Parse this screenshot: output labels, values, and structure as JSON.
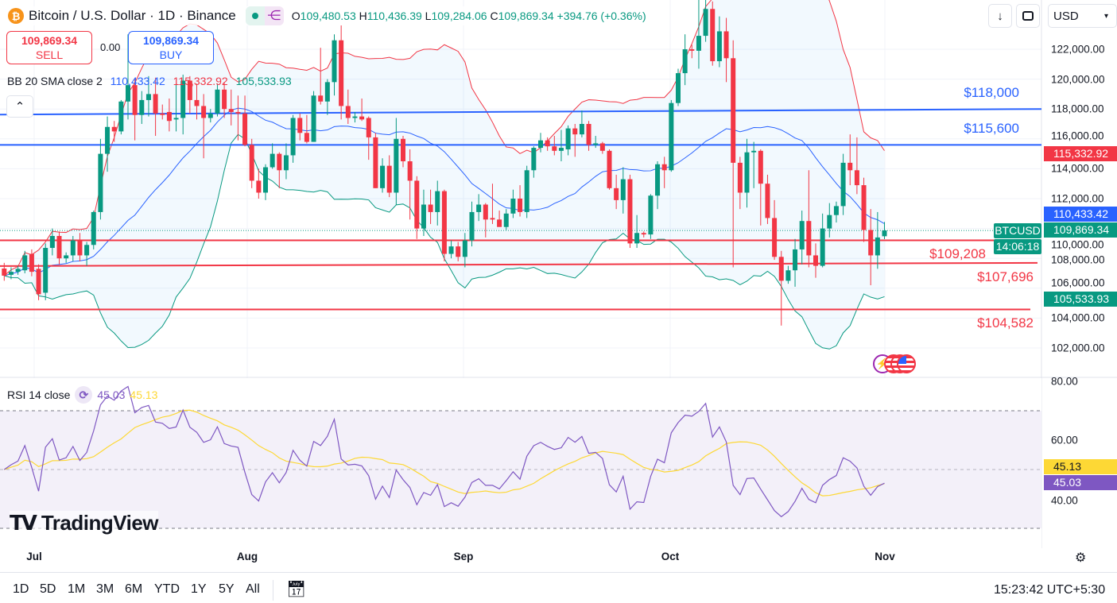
{
  "header": {
    "title": "Bitcoin / U.S. Dollar · 1D · Binance",
    "coin_glyph": "₿",
    "open_label": "O",
    "open": "109,480.53",
    "high_label": "H",
    "high": "110,436.39",
    "low_label": "L",
    "low": "109,284.06",
    "close_label": "C",
    "close": "109,869.34",
    "change": "+394.76 (+0.36%)"
  },
  "trade": {
    "sell_price": "109,869.34",
    "sell_label": "SELL",
    "spread": "0.00",
    "buy_price": "109,869.34",
    "buy_label": "BUY"
  },
  "bb_legend": {
    "name": "BB 20 SMA close 2",
    "basis": "110,433.42",
    "upper": "115,332.92",
    "lower": "105,533.93"
  },
  "toolbar": {
    "currency": "USD"
  },
  "price_axis": {
    "ticks": [
      "122,000.00",
      "120,000.00",
      "118,000.00",
      "116,000.00",
      "114,000.00",
      "112,000.00",
      "110,000.00",
      "108,000.00",
      "106,000.00",
      "104,000.00",
      "102,000.00"
    ],
    "tag_upper": "115,332.92",
    "tag_basis": "110,433.42",
    "tag_last": "109,869.34",
    "tag_countdown": "14:06:18",
    "tag_symbol": "BTCUSD",
    "tag_lower": "105,533.93"
  },
  "levels": [
    {
      "label": "$118,000",
      "value": 118000,
      "color": "#2962FF"
    },
    {
      "label": "$115,600",
      "value": 115600,
      "color": "#2962FF"
    },
    {
      "label": "$109,208",
      "value": 109208,
      "color": "#F23645"
    },
    {
      "label": "$107,696",
      "value": 107696,
      "color": "#F23645"
    },
    {
      "label": "$104,582",
      "value": 104582,
      "color": "#F23645"
    }
  ],
  "rsi": {
    "legend": "RSI 14 close",
    "value": "45.03",
    "ma_value": "45.13",
    "ticks": [
      "80.00",
      "60.00",
      "40.00"
    ],
    "upper_band": 70,
    "middle": 50,
    "lower_band": 30
  },
  "time_axis": [
    "Jul",
    "Aug",
    "Sep",
    "Oct",
    "Nov"
  ],
  "ranges": [
    "1D",
    "5D",
    "1M",
    "3M",
    "6M",
    "YTD",
    "1Y",
    "5Y",
    "All"
  ],
  "clock": "15:23:42 UTC+5:30",
  "logo": "TradingView",
  "colors": {
    "up": "#089981",
    "down": "#F23645",
    "bb_basis": "#2962FF",
    "bb_upper": "#F23645",
    "bb_lower": "#089981",
    "rsi": "#7E57C2",
    "rsi_ma": "#FDD835"
  },
  "chart_data": {
    "type": "candlestick",
    "symbol": "BTCUSD",
    "interval": "1D",
    "ylim": [
      101000,
      125300
    ],
    "rsi_ylim": [
      25,
      83
    ],
    "candles": [
      [
        "Jun 26",
        107320,
        107700,
        106500,
        106840
      ],
      [
        "Jun 27",
        106900,
        107400,
        106600,
        107100
      ],
      [
        "Jun 28",
        107100,
        107500,
        106900,
        107300
      ],
      [
        "Jun 29",
        107200,
        108500,
        107000,
        108200
      ],
      [
        "Jun 30",
        108300,
        108600,
        106800,
        107100
      ],
      [
        "Jul 1",
        107300,
        107600,
        105200,
        105600
      ],
      [
        "Jul 2",
        105700,
        109000,
        105200,
        108700
      ],
      [
        "Jul 3",
        108700,
        110000,
        108200,
        109500
      ],
      [
        "Jul 4",
        109500,
        109800,
        107600,
        108000
      ],
      [
        "Jul 5",
        108000,
        108400,
        107700,
        108200
      ],
      [
        "Jul 6",
        108200,
        109500,
        107800,
        109200
      ],
      [
        "Jul 7",
        109200,
        109700,
        107800,
        108200
      ],
      [
        "Jul 8",
        108200,
        109100,
        107500,
        108900
      ],
      [
        "Jul 9",
        108900,
        111200,
        108600,
        111100
      ],
      [
        "Jul 10",
        111100,
        116000,
        110600,
        115000
      ],
      [
        "Jul 11",
        115000,
        117500,
        113800,
        116800
      ],
      [
        "Jul 12",
        116800,
        117200,
        115800,
        116500
      ],
      [
        "Jul 13",
        116500,
        118600,
        116300,
        118500
      ],
      [
        "Jul 14",
        118500,
        123000,
        117300,
        119600
      ],
      [
        "Jul 15",
        119600,
        120000,
        115900,
        117600
      ],
      [
        "Jul 16",
        117600,
        119200,
        117000,
        118600
      ],
      [
        "Jul 17",
        118600,
        120200,
        117500,
        119000
      ],
      [
        "Jul 18",
        119000,
        120100,
        116200,
        117700
      ],
      [
        "Jul 19",
        117700,
        118300,
        117300,
        117600
      ],
      [
        "Jul 20",
        117800,
        118700,
        116500,
        117200
      ],
      [
        "Jul 21",
        117300,
        119700,
        116500,
        117400
      ],
      [
        "Jul 22",
        117400,
        120300,
        116300,
        119900
      ],
      [
        "Jul 23",
        119900,
        120200,
        117700,
        118600
      ],
      [
        "Jul 24",
        118600,
        119700,
        117300,
        118200
      ],
      [
        "Jul 25",
        118200,
        119000,
        114700,
        117400
      ],
      [
        "Jul 26",
        117400,
        118000,
        117100,
        117700
      ],
      [
        "Jul 27",
        117700,
        119700,
        117500,
        119300
      ],
      [
        "Jul 28",
        119300,
        119800,
        117400,
        118000
      ],
      [
        "Jul 29",
        118000,
        119300,
        116900,
        117800
      ],
      [
        "Jul 30",
        117800,
        118900,
        115900,
        117700
      ],
      [
        "Jul 31",
        117700,
        118900,
        115500,
        115600
      ],
      [
        "Aug 1",
        115600,
        116000,
        112700,
        113200
      ],
      [
        "Aug 2",
        113200,
        114000,
        112000,
        112400
      ],
      [
        "Aug 3",
        112400,
        114300,
        111900,
        114100
      ],
      [
        "Aug 4",
        114100,
        115700,
        114000,
        115000
      ],
      [
        "Aug 5",
        115000,
        115100,
        112700,
        113900
      ],
      [
        "Aug 6",
        113900,
        115700,
        113300,
        114900
      ],
      [
        "Aug 7",
        114900,
        117600,
        114400,
        117400
      ],
      [
        "Aug 8",
        117400,
        117700,
        115900,
        116400
      ],
      [
        "Aug 9",
        116400,
        117600,
        115700,
        115800
      ],
      [
        "Aug 10",
        115800,
        119200,
        115800,
        118900
      ],
      [
        "Aug 11",
        118900,
        122100,
        118300,
        118500
      ],
      [
        "Aug 12",
        118500,
        120000,
        117600,
        119800
      ],
      [
        "Aug 13",
        119800,
        123000,
        118900,
        122600
      ],
      [
        "Aug 14",
        122600,
        123600,
        117300,
        118200
      ],
      [
        "Aug 15",
        118200,
        119300,
        117000,
        117400
      ],
      [
        "Aug 16",
        117400,
        117800,
        117100,
        117500
      ],
      [
        "Aug 17",
        117500,
        118700,
        117200,
        117300
      ],
      [
        "Aug 18",
        117400,
        117500,
        114600,
        116100
      ],
      [
        "Aug 19",
        116100,
        116400,
        112700,
        112700
      ],
      [
        "Aug 20",
        112700,
        114700,
        112400,
        114200
      ],
      [
        "Aug 21",
        114200,
        114900,
        112100,
        112400
      ],
      [
        "Aug 22",
        112400,
        117400,
        111600,
        116000
      ],
      [
        "Aug 23",
        116000,
        116200,
        114100,
        114500
      ],
      [
        "Aug 24",
        114500,
        115300,
        110600,
        113200
      ],
      [
        "Aug 25",
        113200,
        113500,
        109300,
        110000
      ],
      [
        "Aug 26",
        110000,
        112600,
        109500,
        111600
      ],
      [
        "Aug 27",
        111600,
        112600,
        110300,
        111100
      ],
      [
        "Aug 28",
        111100,
        113200,
        110200,
        112500
      ],
      [
        "Aug 29",
        112500,
        112600,
        107800,
        108300
      ],
      [
        "Aug 30",
        108300,
        109200,
        108000,
        108800
      ],
      [
        "Aug 31",
        108800,
        109100,
        107800,
        108100
      ],
      [
        "Sep 1",
        108100,
        109700,
        107400,
        109200
      ],
      [
        "Sep 2",
        109200,
        111800,
        108800,
        111100
      ],
      [
        "Sep 3",
        111100,
        112300,
        110500,
        111600
      ],
      [
        "Sep 4",
        111600,
        111700,
        109400,
        110600
      ],
      [
        "Sep 5",
        110700,
        113000,
        110300,
        110600
      ],
      [
        "Sep 6",
        110600,
        111200,
        110300,
        110100
      ],
      [
        "Sep 7",
        110100,
        111300,
        109900,
        111000
      ],
      [
        "Sep 8",
        111000,
        112600,
        110700,
        112000
      ],
      [
        "Sep 9",
        112000,
        112900,
        110800,
        111100
      ],
      [
        "Sep 10",
        111100,
        114200,
        110700,
        113900
      ],
      [
        "Sep 11",
        113900,
        115500,
        113400,
        115400
      ],
      [
        "Sep 12",
        115400,
        116400,
        115100,
        115900
      ],
      [
        "Sep 13",
        115900,
        116100,
        115200,
        115500
      ],
      [
        "Sep 14",
        115500,
        116200,
        114900,
        115200
      ],
      [
        "Sep 15",
        115200,
        116600,
        114500,
        115400
      ],
      [
        "Sep 16",
        115300,
        116900,
        114900,
        116700
      ],
      [
        "Sep 17",
        116700,
        117000,
        114800,
        116300
      ],
      [
        "Sep 18",
        116300,
        117900,
        116100,
        117000
      ],
      [
        "Sep 19",
        117000,
        117200,
        115200,
        115600
      ],
      [
        "Sep 20",
        115600,
        116200,
        115400,
        115700
      ],
      [
        "Sep 21",
        115700,
        115800,
        115000,
        115200
      ],
      [
        "Sep 22",
        115200,
        115300,
        112600,
        112700
      ],
      [
        "Sep 23",
        112700,
        113600,
        111300,
        111900
      ],
      [
        "Sep 24",
        111900,
        114100,
        111000,
        113300
      ],
      [
        "Sep 25",
        113300,
        113600,
        108700,
        109000
      ],
      [
        "Sep 26",
        109000,
        110900,
        108700,
        109700
      ],
      [
        "Sep 27",
        109700,
        109800,
        109400,
        109600
      ],
      [
        "Sep 28",
        109600,
        112300,
        109300,
        112200
      ],
      [
        "Sep 29",
        112200,
        114500,
        111300,
        114300
      ],
      [
        "Sep 30",
        114300,
        114800,
        112700,
        113900
      ],
      [
        "Oct 1",
        113900,
        118600,
        113800,
        118400
      ],
      [
        "Oct 2",
        118400,
        120700,
        118200,
        120400
      ],
      [
        "Oct 3",
        120400,
        123000,
        119600,
        122000
      ],
      [
        "Oct 4",
        122000,
        122300,
        121400,
        121900
      ],
      [
        "Oct 5",
        121900,
        125500,
        120700,
        122900
      ],
      [
        "Oct 6",
        122900,
        126200,
        122500,
        124700
      ],
      [
        "Oct 7",
        124700,
        125200,
        120900,
        121200
      ],
      [
        "Oct 8",
        121200,
        124200,
        120800,
        123200
      ],
      [
        "Oct 9",
        123200,
        124100,
        119800,
        121400
      ],
      [
        "Oct 10",
        121400,
        122600,
        107400,
        114400
      ],
      [
        "Oct 11",
        114400,
        114800,
        111300,
        112400
      ],
      [
        "Oct 12",
        112400,
        116000,
        111400,
        115100
      ],
      [
        "Oct 13",
        115100,
        115800,
        112700,
        115200
      ],
      [
        "Oct 14",
        115200,
        115300,
        110200,
        113000
      ],
      [
        "Oct 15",
        113000,
        113600,
        110300,
        110700
      ],
      [
        "Oct 16",
        110700,
        111900,
        107900,
        108100
      ],
      [
        "Oct 17",
        108100,
        108500,
        103500,
        106500
      ],
      [
        "Oct 18",
        106500,
        107500,
        106300,
        107200
      ],
      [
        "Oct 19",
        107200,
        109300,
        106100,
        108600
      ],
      [
        "Oct 20",
        108600,
        111200,
        107600,
        110500
      ],
      [
        "Oct 21",
        110500,
        113900,
        107400,
        108200
      ],
      [
        "Oct 22",
        108200,
        109000,
        106700,
        107500
      ],
      [
        "Oct 23",
        107500,
        111000,
        107400,
        110000
      ],
      [
        "Oct 24",
        110000,
        111700,
        109400,
        110900
      ],
      [
        "Oct 25",
        110900,
        111800,
        110400,
        111500
      ],
      [
        "Oct 26",
        111500,
        115000,
        110900,
        114400
      ],
      [
        "Oct 27",
        114400,
        116300,
        112900,
        113900
      ],
      [
        "Oct 28",
        113900,
        116100,
        112300,
        112900
      ],
      [
        "Oct 29",
        112900,
        113400,
        109100,
        109900
      ],
      [
        "Oct 30",
        109900,
        111300,
        106200,
        108200
      ],
      [
        "Oct 31",
        108200,
        111100,
        107300,
        109400
      ],
      [
        "Nov 1",
        109480.53,
        110436.39,
        109284.06,
        109869.34
      ]
    ]
  }
}
